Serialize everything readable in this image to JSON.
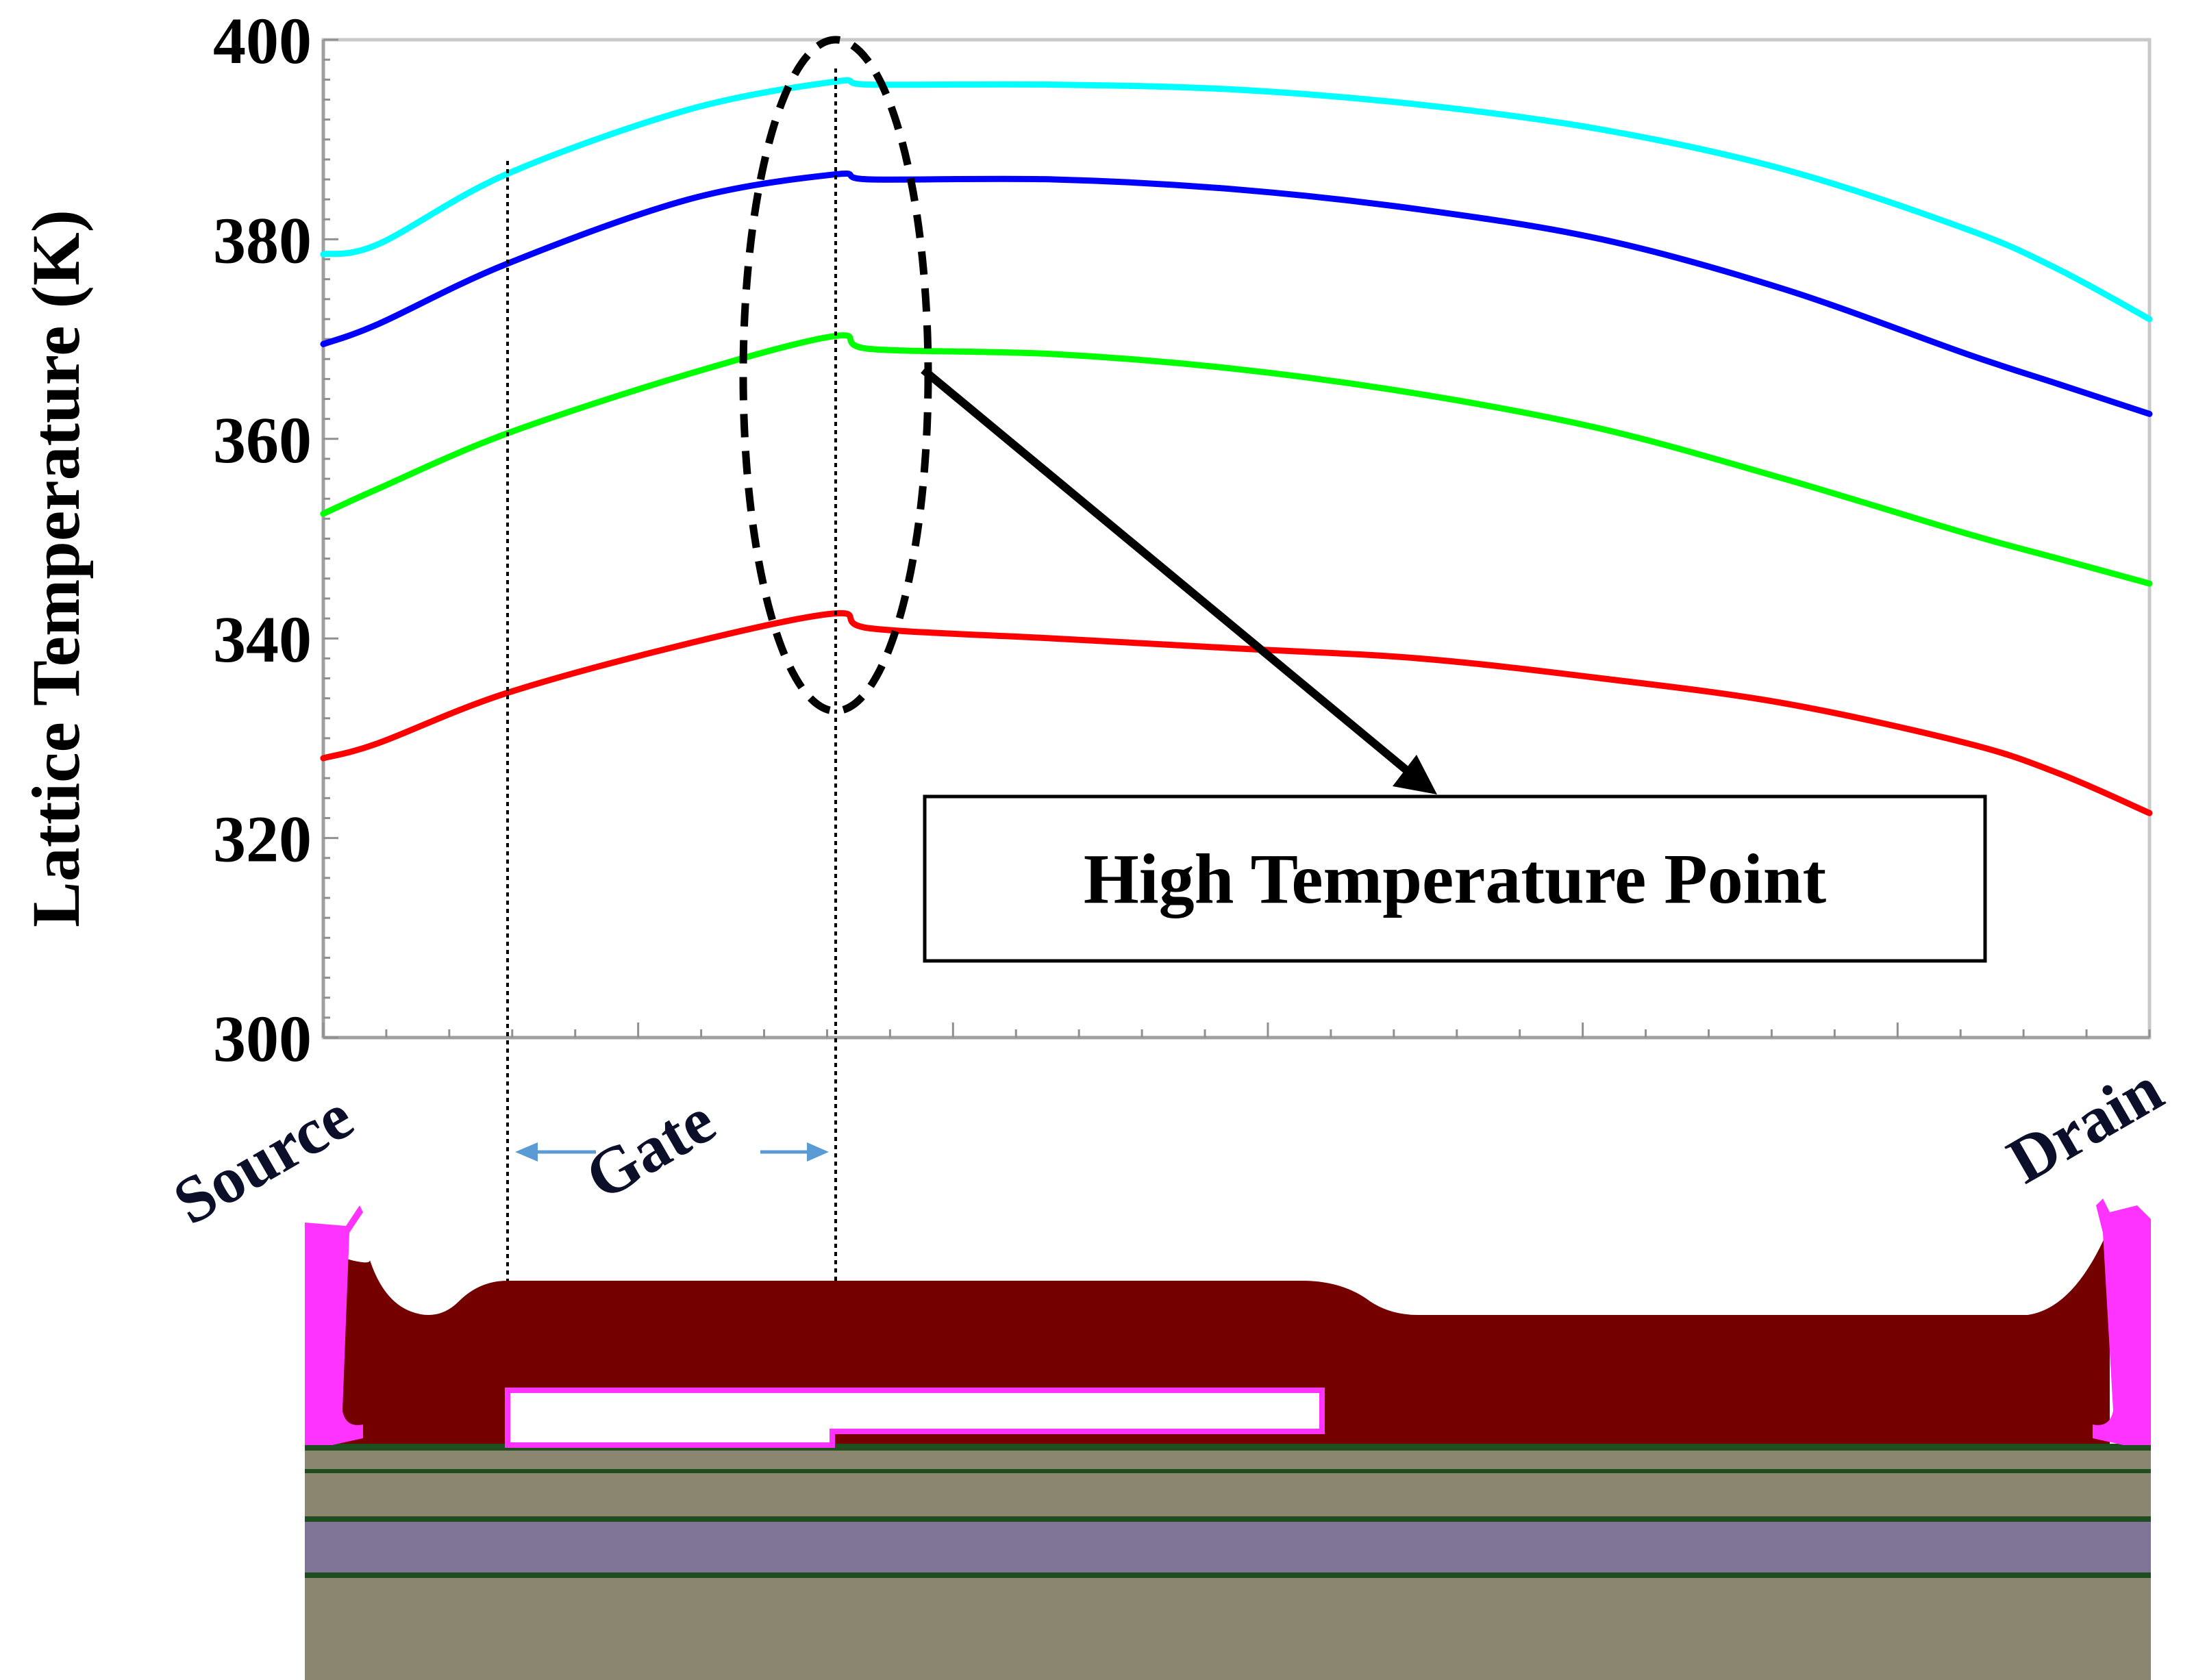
{
  "chart_data": {
    "type": "line",
    "ylabel": "Lattice Temperature (K)",
    "xlabel": "",
    "ylim": [
      300,
      400
    ],
    "yticks": [
      300,
      320,
      340,
      360,
      380,
      400
    ],
    "xlim": [
      0,
      1
    ],
    "grid": false,
    "annotation": "High Temperature Point",
    "x": [
      0.0,
      0.03,
      0.1,
      0.2,
      0.28,
      0.3,
      0.4,
      0.5,
      0.6,
      0.7,
      0.8,
      0.9,
      0.95,
      1.0
    ],
    "series": [
      {
        "color": "#00ffff",
        "values": [
          378.5,
          379.5,
          386.5,
          393.0,
          395.8,
          395.5,
          395.5,
          395.0,
          393.5,
          391.0,
          387.0,
          381.0,
          377.0,
          372.0
        ]
      },
      {
        "color": "#0000ff",
        "values": [
          369.5,
          371.5,
          377.5,
          384.0,
          386.5,
          386.0,
          386.0,
          385.0,
          383.0,
          380.0,
          375.0,
          368.5,
          365.5,
          362.5
        ]
      },
      {
        "color": "#00ff00",
        "values": [
          352.5,
          355.0,
          360.5,
          366.5,
          370.3,
          369.0,
          368.5,
          367.0,
          364.5,
          361.0,
          356.0,
          350.5,
          348.0,
          345.5
        ]
      },
      {
        "color": "#ff0000",
        "values": [
          328.0,
          329.5,
          334.5,
          339.5,
          342.5,
          341.0,
          340.0,
          339.0,
          338.0,
          336.0,
          333.5,
          329.5,
          326.5,
          322.5
        ]
      }
    ]
  },
  "device": {
    "source_label": "Source",
    "gate_label": "Gate",
    "drain_label": "Drain",
    "colors": {
      "body": "#750000",
      "contact": "#ff33ff",
      "gate_metal": "#ffffff",
      "layer_gray": "#8a8670",
      "layer_purple": "#7f7396",
      "layer_green": "#1e4d1e",
      "arrow_blue": "#5b9bd5"
    }
  }
}
